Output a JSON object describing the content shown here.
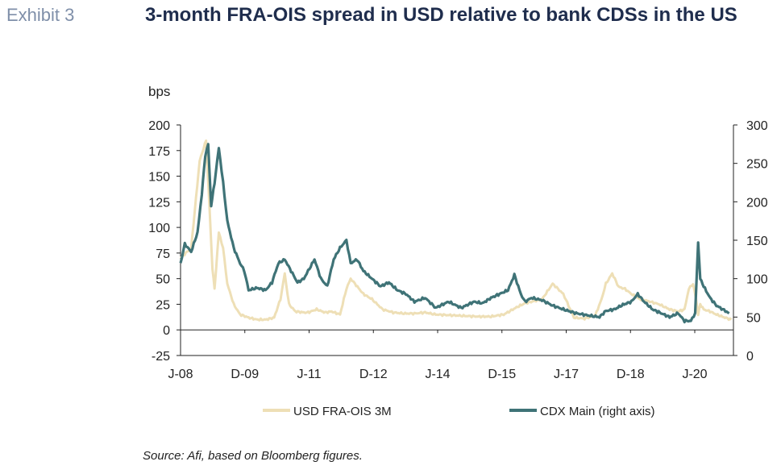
{
  "exhibit_label": "Exhibit 3",
  "chart_data": {
    "type": "line",
    "title": "3-month FRA-OIS spread in USD relative to bank CDSs in the US",
    "ylabel": "bps",
    "ylim_left": [
      -25,
      200
    ],
    "yticks_left": [
      -25,
      0,
      25,
      50,
      75,
      100,
      125,
      150,
      175,
      200
    ],
    "ylim_right": [
      0,
      300
    ],
    "yticks_right": [
      0,
      50,
      100,
      150,
      200,
      250,
      300
    ],
    "x_tick_labels": [
      "J-08",
      "D-09",
      "J-11",
      "D-12",
      "J-14",
      "D-15",
      "J-17",
      "D-18",
      "J-20"
    ],
    "legend_position": "bottom",
    "colors": {
      "USD FRA-OIS 3M": "#eedfb6",
      "CDX Main (right axis)": "#3f7377"
    },
    "series": [
      {
        "name": "USD FRA-OIS 3M",
        "axis": "left",
        "x": [
          2008.0,
          2008.25,
          2008.45,
          2008.6,
          2008.68,
          2008.75,
          2008.8,
          2008.9,
          2009.0,
          2009.1,
          2009.25,
          2009.4,
          2009.6,
          2009.8,
          2010.0,
          2010.2,
          2010.35,
          2010.45,
          2010.55,
          2010.7,
          2010.9,
          2011.0,
          2011.2,
          2011.4,
          2011.55,
          2011.75,
          2011.9,
          2012.0,
          2012.1,
          2012.3,
          2012.5,
          2012.75,
          2013.0,
          2013.25,
          2013.5,
          2013.75,
          2014.0,
          2014.5,
          2015.0,
          2015.3,
          2015.6,
          2015.9,
          2016.1,
          2016.3,
          2016.5,
          2016.75,
          2017.0,
          2017.25,
          2017.5,
          2017.75,
          2017.9,
          2018.0,
          2018.15,
          2018.3,
          2018.45,
          2018.6,
          2018.8,
          2019.0,
          2019.25,
          2019.5,
          2019.7,
          2019.85,
          2019.95,
          2020.05,
          2020.12,
          2020.17,
          2020.22,
          2020.3,
          2020.45,
          2020.6,
          2020.8,
          2020.95
        ],
        "values": [
          70,
          80,
          165,
          185,
          120,
          60,
          40,
          95,
          80,
          45,
          25,
          15,
          12,
          10,
          10,
          12,
          30,
          55,
          25,
          18,
          17,
          17,
          20,
          17,
          18,
          15,
          40,
          50,
          45,
          35,
          30,
          20,
          17,
          16,
          16,
          17,
          15,
          14,
          13,
          13,
          15,
          22,
          26,
          28,
          30,
          45,
          35,
          12,
          11,
          14,
          30,
          45,
          55,
          42,
          40,
          35,
          30,
          28,
          25,
          20,
          18,
          20,
          40,
          45,
          30,
          15,
          25,
          20,
          18,
          15,
          12,
          10
        ]
      },
      {
        "name": "CDX Main (right axis)",
        "axis": "right",
        "x": [
          2008.0,
          2008.1,
          2008.25,
          2008.4,
          2008.5,
          2008.58,
          2008.65,
          2008.72,
          2008.8,
          2008.9,
          2009.0,
          2009.1,
          2009.25,
          2009.4,
          2009.5,
          2009.6,
          2009.8,
          2010.0,
          2010.15,
          2010.3,
          2010.45,
          2010.6,
          2010.75,
          2010.9,
          2011.0,
          2011.15,
          2011.3,
          2011.45,
          2011.6,
          2011.75,
          2011.9,
          2012.0,
          2012.15,
          2012.3,
          2012.5,
          2012.7,
          2012.9,
          2013.1,
          2013.3,
          2013.5,
          2013.75,
          2014.0,
          2014.3,
          2014.6,
          2014.9,
          2015.1,
          2015.3,
          2015.5,
          2015.7,
          2015.85,
          2016.0,
          2016.1,
          2016.25,
          2016.5,
          2016.75,
          2017.0,
          2017.3,
          2017.6,
          2017.85,
          2018.0,
          2018.2,
          2018.4,
          2018.6,
          2018.75,
          2018.9,
          2019.1,
          2019.3,
          2019.5,
          2019.7,
          2019.85,
          2020.0,
          2020.1,
          2020.17,
          2020.22,
          2020.3,
          2020.45,
          2020.6,
          2020.75,
          2020.9
        ],
        "values": [
          120,
          145,
          135,
          160,
          210,
          260,
          275,
          195,
          225,
          270,
          225,
          175,
          140,
          120,
          110,
          85,
          88,
          85,
          95,
          120,
          125,
          110,
          95,
          100,
          110,
          125,
          100,
          90,
          125,
          140,
          150,
          120,
          125,
          110,
          100,
          90,
          95,
          85,
          80,
          70,
          75,
          62,
          70,
          62,
          70,
          68,
          75,
          80,
          85,
          105,
          80,
          70,
          75,
          72,
          65,
          60,
          55,
          52,
          50,
          58,
          60,
          66,
          70,
          80,
          70,
          60,
          55,
          50,
          55,
          45,
          45,
          55,
          148,
          100,
          90,
          75,
          65,
          60,
          55
        ]
      }
    ]
  },
  "source_note": "Source: Afi, based on Bloomberg figures."
}
